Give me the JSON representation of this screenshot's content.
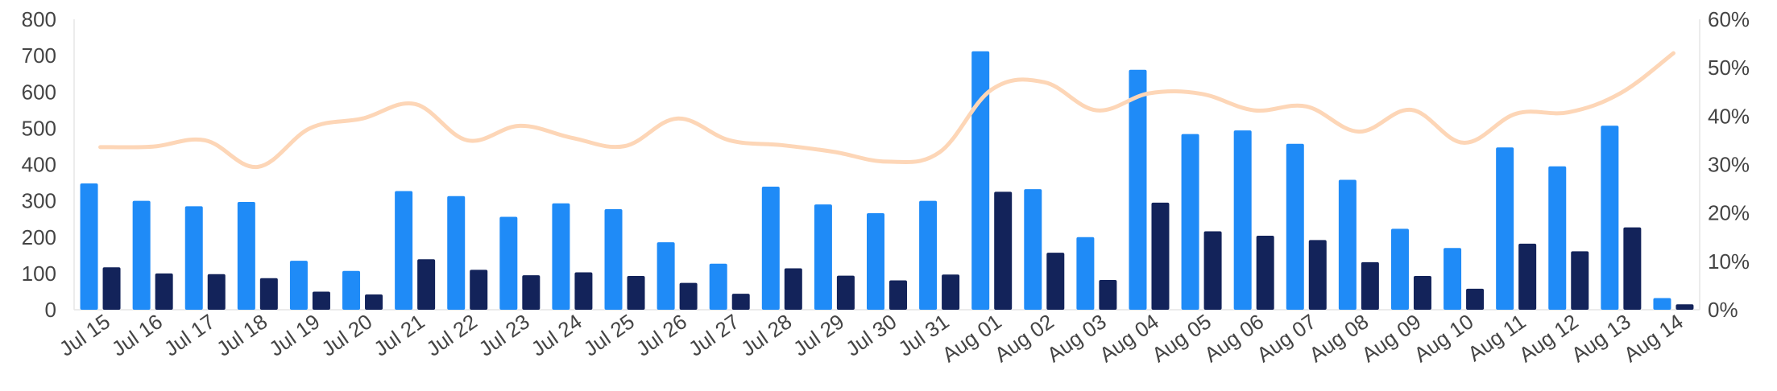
{
  "chart_data": {
    "type": "bar",
    "title": "",
    "categories": [
      "Jul 15",
      "Jul 16",
      "Jul 17",
      "Jul 18",
      "Jul 19",
      "Jul 20",
      "Jul 21",
      "Jul 22",
      "Jul 23",
      "Jul 24",
      "Jul 25",
      "Jul 26",
      "Jul 27",
      "Jul 28",
      "Jul 29",
      "Jul 30",
      "Jul 31",
      "Aug 01",
      "Aug 02",
      "Aug 03",
      "Aug 04",
      "Aug 05",
      "Aug 06",
      "Aug 07",
      "Aug 08",
      "Aug 09",
      "Aug 10",
      "Aug 11",
      "Aug 12",
      "Aug 13",
      "Aug 14"
    ],
    "series": [
      {
        "type": "bar",
        "axis": "left",
        "color": "#1f8bf7",
        "values": [
          348,
          300,
          285,
          297,
          135,
          107,
          327,
          313,
          256,
          293,
          277,
          186,
          127,
          339,
          290,
          266,
          300,
          712,
          332,
          200,
          661,
          484,
          494,
          457,
          358,
          223,
          170,
          447,
          395,
          507,
          32
        ]
      },
      {
        "type": "bar",
        "axis": "left",
        "color": "#13235a",
        "values": [
          117,
          100,
          98,
          87,
          50,
          42,
          139,
          110,
          95,
          103,
          93,
          74,
          44,
          114,
          94,
          81,
          97,
          325,
          157,
          82,
          295,
          216,
          204,
          192,
          131,
          93,
          58,
          182,
          161,
          227,
          15
        ]
      },
      {
        "type": "line",
        "axis": "right",
        "color": "#fdd6b7",
        "values": [
          33.6,
          33.7,
          35,
          29.5,
          37.5,
          39.5,
          42.5,
          35,
          38,
          35.5,
          33.8,
          39.5,
          35,
          34,
          32.6,
          30.6,
          32.5,
          45.5,
          47,
          41.2,
          44.7,
          44.6,
          41.2,
          42,
          36.8,
          41.3,
          34.5,
          40.5,
          40.8,
          44.8,
          53
        ]
      }
    ],
    "y_left": {
      "ylim": [
        0,
        800
      ],
      "ticks": [
        "0",
        "100",
        "200",
        "300",
        "400",
        "500",
        "600",
        "700",
        "800"
      ]
    },
    "y_right": {
      "ylim": [
        0,
        60
      ],
      "ticks": [
        "0%",
        "10%",
        "20%",
        "30%",
        "40%",
        "50%",
        "60%"
      ]
    },
    "grid": false,
    "legend": "none"
  }
}
